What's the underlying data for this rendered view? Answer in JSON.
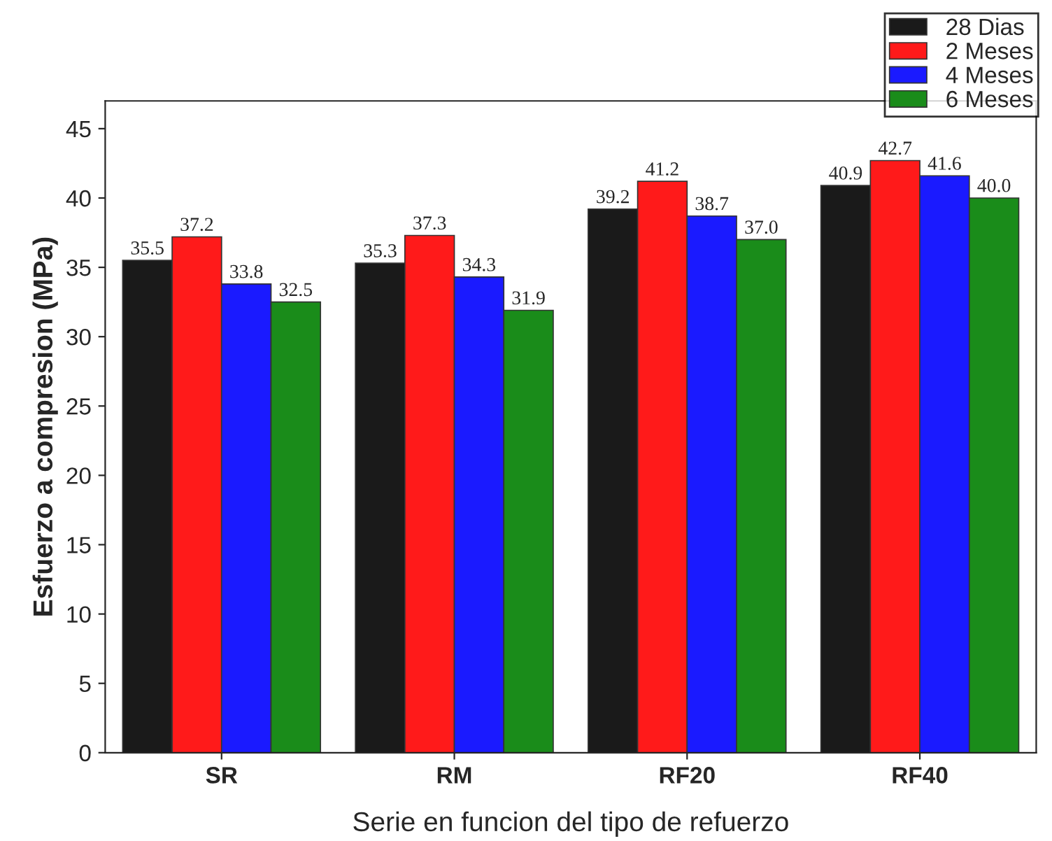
{
  "chart_data": {
    "type": "bar",
    "xlabel": "Serie en funcion del tipo de refuerzo",
    "ylabel": "Esfuerzo a compresion (MPa)",
    "categories": [
      "SR",
      "RM",
      "RF20",
      "RF40"
    ],
    "series": [
      {
        "name": "28 Dias",
        "color": "#1a1a1a",
        "values": [
          35.5,
          35.3,
          39.2,
          40.9
        ],
        "value_labels": [
          "35.5",
          "35.3",
          "39.2",
          "40.9"
        ]
      },
      {
        "name": "2 Meses",
        "color": "#ff1a1a",
        "values": [
          37.2,
          37.3,
          41.2,
          42.7
        ],
        "value_labels": [
          "37.2",
          "37.3",
          "41.2",
          "42.7"
        ]
      },
      {
        "name": "4 Meses",
        "color": "#1a1aff",
        "values": [
          33.8,
          34.3,
          38.7,
          41.6
        ],
        "value_labels": [
          "33.8",
          "34.3",
          "38.7",
          "41.6"
        ]
      },
      {
        "name": "6 Meses",
        "color": "#1a8c1a",
        "values": [
          32.5,
          31.9,
          37.0,
          40.0
        ],
        "value_labels": [
          "32.5",
          "31.9",
          "37.0",
          "40.0"
        ]
      }
    ],
    "ylim": [
      0,
      47
    ],
    "yticks": [
      0,
      5,
      10,
      15,
      20,
      25,
      30,
      35,
      40,
      45
    ],
    "grid": false,
    "legend": "top right"
  }
}
